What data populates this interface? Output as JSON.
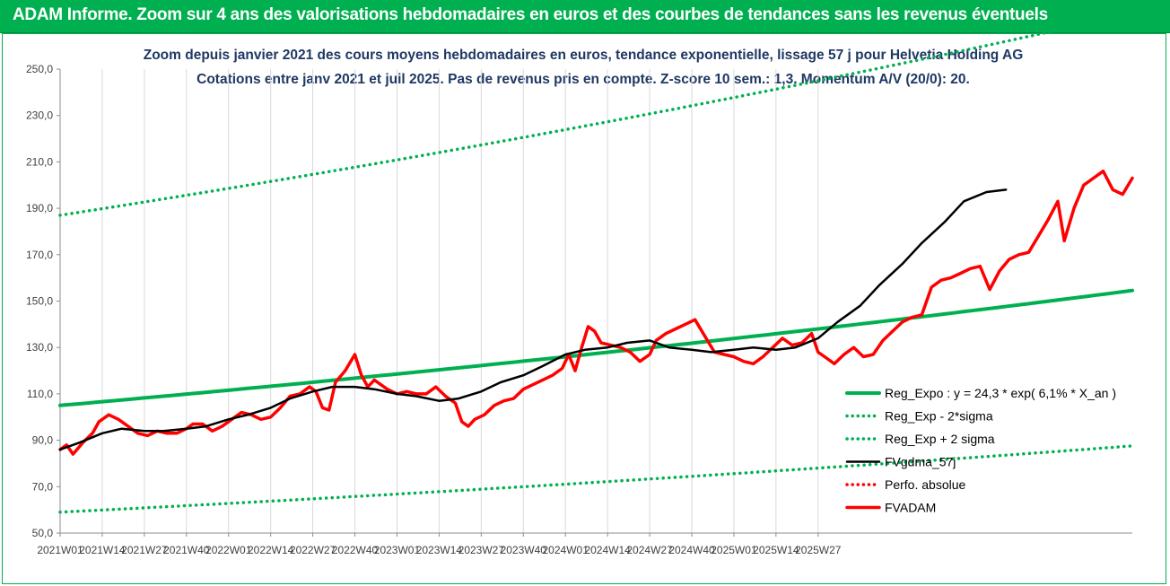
{
  "banner": {
    "title": "ADAM Informe. Zoom sur 4 ans des valorisations hebdomadaires en euros et des courbes de tendances sans les revenus éventuels"
  },
  "chart_data": {
    "type": "line",
    "title": "Zoom depuis janvier 2021 des cours moyens hebdomadaires en euros, tendance exponentielle, lissage 57 j pour Helvetia Holding AG",
    "subtitle": "Cotations entre janv 2021 et juil 2025. Pas de revenus pris en compte. Z-score 10 sem.: 1,3. Momentum A/V (20/0): 20.",
    "xlabel": "",
    "ylabel": "",
    "ylim": [
      50,
      250
    ],
    "y_ticks": [
      "50,0",
      "70,0",
      "90,0",
      "110,0",
      "130,0",
      "150,0",
      "170,0",
      "190,0",
      "210,0",
      "230,0",
      "250,0"
    ],
    "x_ticks": [
      "2021W01",
      "2021W14",
      "2021W27",
      "2021W40",
      "2022W01",
      "2022W14",
      "2022W27",
      "2022W40",
      "2023W01",
      "2023W14",
      "2023W27",
      "2023W40",
      "2024W01",
      "2024W14",
      "2024W27",
      "2024W40",
      "2025W01",
      "2025W14",
      "2025W27"
    ],
    "grid": "vertical",
    "legend_position": "right",
    "colors": {
      "reg_expo": "#00b050",
      "reg_minus": "#00b050",
      "reg_plus": "#00b050",
      "fvgdma": "#000000",
      "perfo": "#ff0000",
      "fvadam": "#ff0000"
    },
    "series": [
      {
        "key": "reg_expo",
        "name": "Reg_Expo : y = 24,3 * exp( 6,1% *  X_an )",
        "style": "solid",
        "anchors": [
          [
            0,
            105
          ],
          [
            234,
            138
          ]
        ]
      },
      {
        "key": "reg_minus",
        "name": "Reg_Exp - 2*sigma",
        "style": "dotted",
        "anchors": [
          [
            0,
            59
          ],
          [
            234,
            78
          ]
        ]
      },
      {
        "key": "reg_plus",
        "name": "Reg_Exp + 2 sigma",
        "style": "dotted",
        "anchors": [
          [
            0,
            187
          ],
          [
            234,
            245
          ]
        ]
      },
      {
        "key": "fvgdma",
        "name": "FVgdma_57j",
        "style": "solid",
        "anchors": [
          [
            0,
            86
          ],
          [
            6,
            89
          ],
          [
            13,
            93
          ],
          [
            19,
            95
          ],
          [
            26,
            94
          ],
          [
            32,
            94
          ],
          [
            39,
            95
          ],
          [
            45,
            96
          ],
          [
            52,
            99
          ],
          [
            58,
            101
          ],
          [
            65,
            104
          ],
          [
            71,
            108
          ],
          [
            78,
            111
          ],
          [
            84,
            113
          ],
          [
            91,
            113
          ],
          [
            97,
            112
          ],
          [
            104,
            110
          ],
          [
            110,
            109
          ],
          [
            117,
            107
          ],
          [
            123,
            108
          ],
          [
            130,
            111
          ],
          [
            136,
            115
          ],
          [
            143,
            118
          ],
          [
            149,
            122
          ],
          [
            156,
            127
          ],
          [
            162,
            129
          ],
          [
            169,
            130
          ],
          [
            175,
            132
          ],
          [
            182,
            133
          ],
          [
            188,
            130
          ],
          [
            195,
            129
          ],
          [
            201,
            128
          ],
          [
            208,
            129
          ],
          [
            214,
            130
          ],
          [
            221,
            129
          ],
          [
            227,
            130
          ],
          [
            234,
            134
          ],
          [
            240,
            141
          ],
          [
            247,
            148
          ],
          [
            253,
            157
          ],
          [
            260,
            166
          ],
          [
            266,
            175
          ],
          [
            273,
            184
          ],
          [
            279,
            193
          ],
          [
            286,
            197
          ],
          [
            292,
            198
          ]
        ]
      },
      {
        "key": "perfo",
        "name": "Perfo. absolue",
        "style": "dotted",
        "anchors": []
      },
      {
        "key": "fvadam",
        "name": "FVADAM",
        "style": "solid",
        "anchors": [
          [
            0,
            86
          ],
          [
            2,
            88
          ],
          [
            4,
            84
          ],
          [
            7,
            89
          ],
          [
            10,
            93
          ],
          [
            12,
            98
          ],
          [
            15,
            101
          ],
          [
            18,
            99
          ],
          [
            21,
            96
          ],
          [
            24,
            93
          ],
          [
            27,
            92
          ],
          [
            30,
            94
          ],
          [
            33,
            93
          ],
          [
            36,
            93
          ],
          [
            39,
            95
          ],
          [
            41,
            97
          ],
          [
            44,
            97
          ],
          [
            47,
            94
          ],
          [
            50,
            96
          ],
          [
            53,
            99
          ],
          [
            56,
            102
          ],
          [
            59,
            101
          ],
          [
            62,
            99
          ],
          [
            65,
            100
          ],
          [
            68,
            104
          ],
          [
            71,
            109
          ],
          [
            74,
            110
          ],
          [
            77,
            113
          ],
          [
            79,
            111
          ],
          [
            81,
            104
          ],
          [
            83,
            103
          ],
          [
            85,
            115
          ],
          [
            88,
            120
          ],
          [
            91,
            127
          ],
          [
            93,
            118
          ],
          [
            95,
            113
          ],
          [
            97,
            116
          ],
          [
            99,
            114
          ],
          [
            101,
            112
          ],
          [
            104,
            110
          ],
          [
            107,
            111
          ],
          [
            110,
            110
          ],
          [
            113,
            110
          ],
          [
            116,
            113
          ],
          [
            119,
            109
          ],
          [
            122,
            106
          ],
          [
            124,
            98
          ],
          [
            126,
            96
          ],
          [
            128,
            99
          ],
          [
            131,
            101
          ],
          [
            134,
            105
          ],
          [
            137,
            107
          ],
          [
            140,
            108
          ],
          [
            143,
            112
          ],
          [
            146,
            114
          ],
          [
            149,
            116
          ],
          [
            152,
            118
          ],
          [
            155,
            121
          ],
          [
            157,
            127
          ],
          [
            159,
            120
          ],
          [
            161,
            130
          ],
          [
            163,
            139
          ],
          [
            165,
            137
          ],
          [
            167,
            132
          ],
          [
            170,
            131
          ],
          [
            173,
            130
          ],
          [
            176,
            128
          ],
          [
            179,
            124
          ],
          [
            182,
            127
          ],
          [
            184,
            133
          ],
          [
            187,
            136
          ],
          [
            190,
            138
          ],
          [
            193,
            140
          ],
          [
            196,
            142
          ],
          [
            199,
            135
          ],
          [
            202,
            128
          ],
          [
            205,
            127
          ],
          [
            208,
            126
          ],
          [
            211,
            124
          ],
          [
            214,
            123
          ],
          [
            217,
            126
          ],
          [
            220,
            130
          ],
          [
            223,
            134
          ],
          [
            226,
            131
          ],
          [
            229,
            132
          ],
          [
            232,
            136
          ],
          [
            234,
            128
          ],
          [
            236,
            126
          ],
          [
            239,
            123
          ],
          [
            242,
            127
          ],
          [
            245,
            130
          ],
          [
            248,
            126
          ],
          [
            251,
            127
          ],
          [
            254,
            133
          ],
          [
            257,
            137
          ],
          [
            260,
            141
          ],
          [
            263,
            143
          ],
          [
            266,
            144
          ],
          [
            269,
            156
          ],
          [
            272,
            159
          ],
          [
            275,
            160
          ],
          [
            278,
            162
          ],
          [
            281,
            164
          ],
          [
            284,
            165
          ],
          [
            287,
            155
          ],
          [
            290,
            163
          ],
          [
            293,
            168
          ],
          [
            296,
            170
          ],
          [
            299,
            171
          ],
          [
            302,
            178
          ],
          [
            305,
            185
          ],
          [
            308,
            193
          ],
          [
            310,
            176
          ],
          [
            313,
            190
          ],
          [
            316,
            200
          ],
          [
            319,
            203
          ],
          [
            322,
            206
          ],
          [
            325,
            198
          ],
          [
            328,
            196
          ],
          [
            331,
            203
          ]
        ]
      }
    ]
  }
}
